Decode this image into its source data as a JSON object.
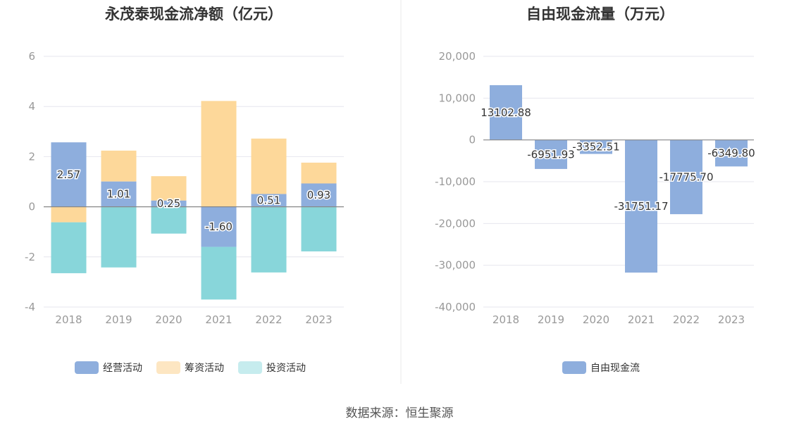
{
  "source": "数据来源：恒生聚源",
  "chart_data": [
    {
      "type": "bar",
      "stacked": true,
      "title": "永茂泰现金流净额（亿元）",
      "categories": [
        "2018",
        "2019",
        "2020",
        "2021",
        "2022",
        "2023"
      ],
      "yticks": [
        "6",
        "4",
        "2",
        "0",
        "-2",
        "-4"
      ],
      "ylim": [
        -4,
        6
      ],
      "grid": true,
      "legend_position": "bottom",
      "series": [
        {
          "name": "经营活动",
          "color": "#8eaedd",
          "values": [
            2.57,
            1.01,
            0.25,
            -1.6,
            0.51,
            0.93
          ],
          "labels": [
            "2.57",
            "1.01",
            "0.25",
            "-1.60",
            "0.51",
            "0.93"
          ]
        },
        {
          "name": "筹资活动",
          "color": "#fdd89a",
          "values": [
            -0.62,
            1.23,
            0.97,
            4.22,
            2.21,
            0.83
          ]
        },
        {
          "name": "投资活动",
          "color": "#88d6da",
          "values": [
            -2.03,
            -2.42,
            -1.07,
            -2.1,
            -2.62,
            -1.78
          ]
        }
      ],
      "legend": [
        {
          "name": "经营活动",
          "color": "#8eaedd"
        },
        {
          "name": "筹资活动",
          "color": "#fde6c2"
        },
        {
          "name": "投资活动",
          "color": "#c6ecee"
        }
      ]
    },
    {
      "type": "bar",
      "title": "自由现金流量（万元）",
      "categories": [
        "2018",
        "2019",
        "2020",
        "2021",
        "2022",
        "2023"
      ],
      "yticks": [
        "20,000",
        "10,000",
        "0",
        "-10,000",
        "-20,000",
        "-30,000",
        "-40,000"
      ],
      "ylim": [
        -40000,
        20000
      ],
      "grid": true,
      "legend_position": "bottom",
      "series": [
        {
          "name": "自由现金流",
          "color": "#8eaedd",
          "values": [
            13102.88,
            -6951.93,
            -3352.51,
            -31751.17,
            -17775.7,
            -6349.8
          ],
          "labels": [
            "13102.88",
            "-6951.93",
            "-3352.51",
            "-31751.17",
            "-17775.70",
            "-6349.80"
          ]
        }
      ],
      "legend": [
        {
          "name": "自由现金流",
          "color": "#8eaedd"
        }
      ]
    }
  ]
}
